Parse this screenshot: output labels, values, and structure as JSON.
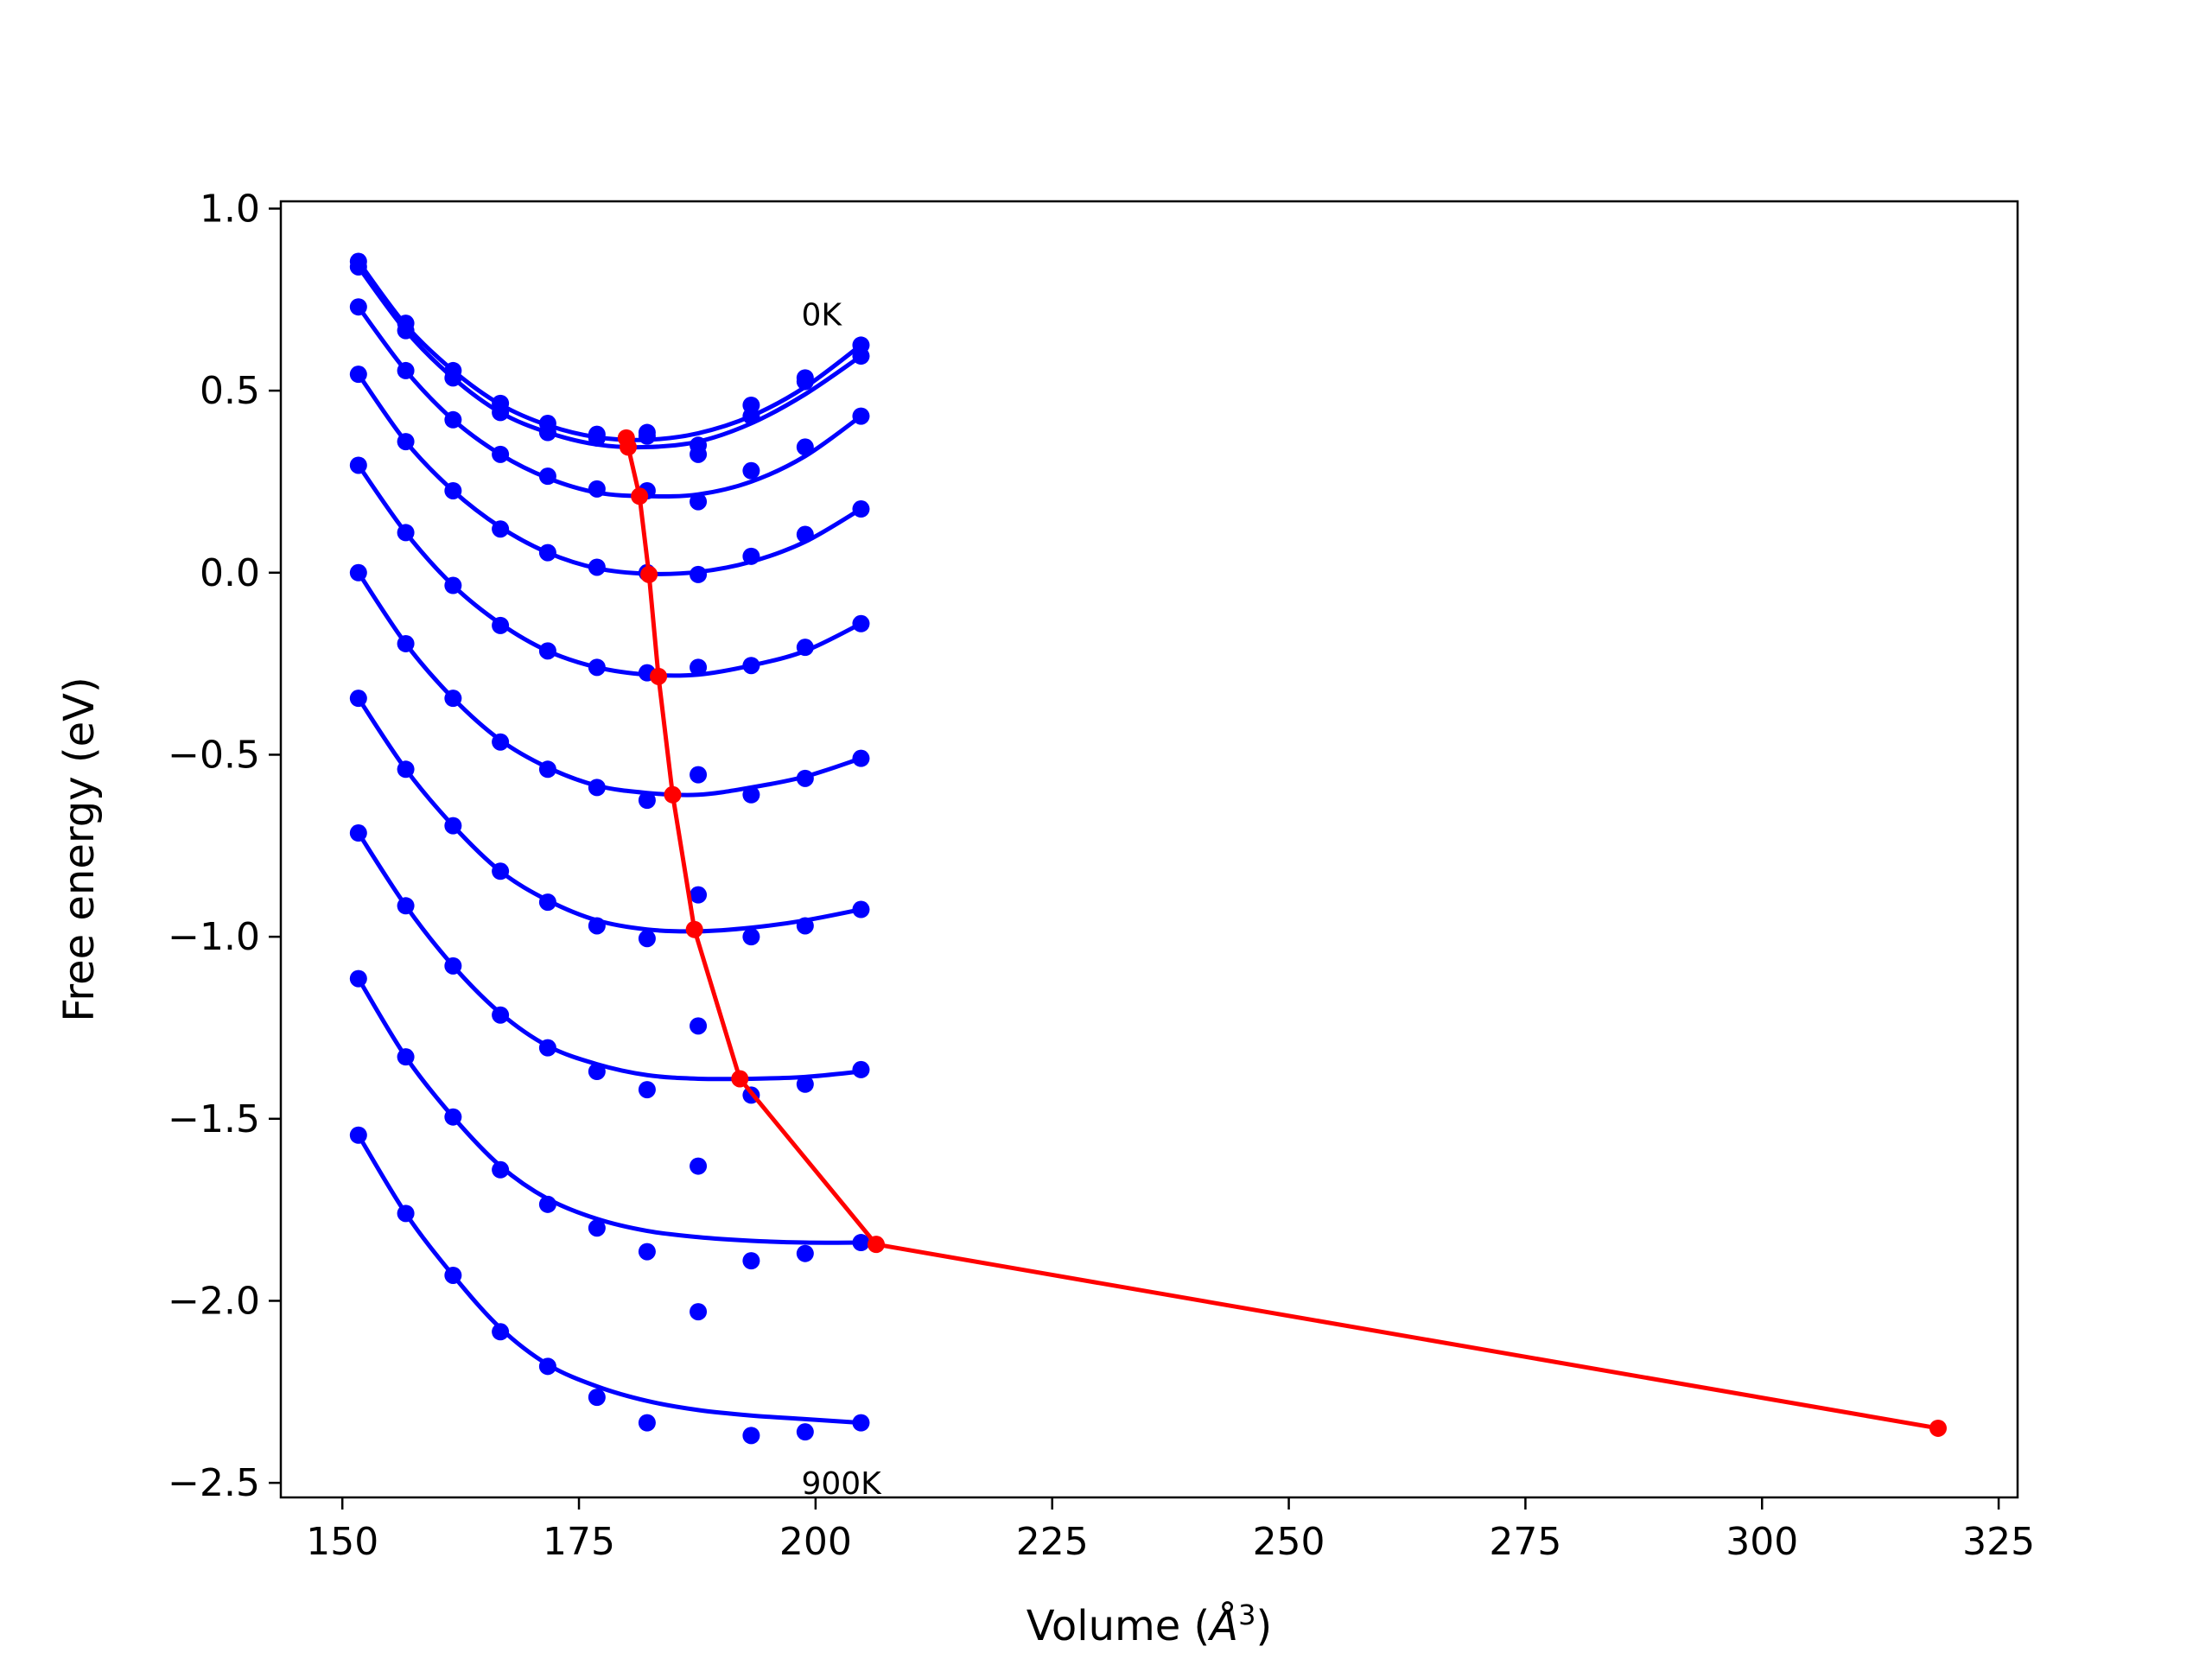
{
  "chart_data": {
    "type": "line",
    "xlabel_prefix": "Volume (",
    "xlabel_symbol": "Å",
    "xlabel_sup": "3",
    "xlabel_suffix": ")",
    "ylabel": "Free energy (eV)",
    "xlim": [
      143.5,
      327
    ],
    "ylim": [
      -2.54,
      1.02
    ],
    "xticks": [
      150,
      175,
      200,
      225,
      250,
      275,
      300,
      325
    ],
    "yticks": [
      1.0,
      0.5,
      0.0,
      -0.5,
      -1.0,
      -1.5,
      -2.0,
      -2.5
    ],
    "annotations": [
      {
        "text": "0K",
        "x": 198.5,
        "y": 0.68
      },
      {
        "text": "900K",
        "x": 198.5,
        "y": -2.53
      }
    ],
    "colors": {
      "series": "#0000ff",
      "minima": "#ff0000"
    },
    "x": [
      151.7,
      156.7,
      161.7,
      166.7,
      171.7,
      176.9,
      182.2,
      187.6,
      193.2,
      198.9,
      204.8
    ],
    "series": [
      {
        "points": [
          0.855,
          0.685,
          0.555,
          0.465,
          0.41,
          0.38,
          0.385,
          0.35,
          0.46,
          0.535,
          0.625
        ],
        "fit": [
          0.855,
          0.68,
          0.555,
          0.462,
          0.405,
          0.372,
          0.365,
          0.383,
          0.43,
          0.51,
          0.625
        ]
      },
      {
        "points": [
          0.84,
          0.665,
          0.535,
          0.44,
          0.385,
          0.37,
          0.375,
          0.325,
          0.43,
          0.525,
          0.595
        ],
        "fit": [
          0.84,
          0.665,
          0.535,
          0.44,
          0.385,
          0.352,
          0.345,
          0.36,
          0.41,
          0.49,
          0.595
        ]
      },
      {
        "points": [
          0.73,
          0.555,
          0.42,
          0.325,
          0.265,
          0.23,
          0.225,
          0.195,
          0.28,
          0.345,
          0.43
        ],
        "fit": [
          0.73,
          0.555,
          0.42,
          0.325,
          0.26,
          0.22,
          0.21,
          0.215,
          0.25,
          0.32,
          0.43
        ]
      },
      {
        "points": [
          0.545,
          0.36,
          0.225,
          0.12,
          0.055,
          0.015,
          0.0,
          -0.005,
          0.045,
          0.105,
          0.175
        ],
        "fit": [
          0.545,
          0.36,
          0.225,
          0.125,
          0.055,
          0.012,
          -0.003,
          0.002,
          0.03,
          0.085,
          0.175
        ]
      },
      {
        "points": [
          0.295,
          0.11,
          -0.035,
          -0.145,
          -0.215,
          -0.26,
          -0.275,
          -0.26,
          -0.255,
          -0.205,
          -0.14
        ],
        "fit": [
          0.295,
          0.11,
          -0.035,
          -0.14,
          -0.215,
          -0.26,
          -0.28,
          -0.28,
          -0.255,
          -0.215,
          -0.14
        ]
      },
      {
        "points": [
          0.0,
          -0.195,
          -0.345,
          -0.465,
          -0.54,
          -0.59,
          -0.625,
          -0.555,
          -0.61,
          -0.565,
          -0.51
        ],
        "fit": [
          0.0,
          -0.195,
          -0.345,
          -0.46,
          -0.535,
          -0.585,
          -0.605,
          -0.61,
          -0.59,
          -0.56,
          -0.51
        ]
      },
      {
        "points": [
          -0.345,
          -0.54,
          -0.695,
          -0.82,
          -0.905,
          -0.97,
          -1.005,
          -0.885,
          -1.0,
          -0.97,
          -0.925
        ],
        "fit": [
          -0.345,
          -0.54,
          -0.695,
          -0.82,
          -0.9,
          -0.955,
          -0.98,
          -0.985,
          -0.975,
          -0.955,
          -0.925
        ]
      },
      {
        "points": [
          -0.715,
          -0.915,
          -1.08,
          -1.215,
          -1.305,
          -1.37,
          -1.42,
          -1.245,
          -1.435,
          -1.405,
          -1.365
        ],
        "fit": [
          -0.715,
          -0.915,
          -1.08,
          -1.21,
          -1.3,
          -1.35,
          -1.38,
          -1.39,
          -1.39,
          -1.385,
          -1.37
        ]
      },
      {
        "points": [
          -1.115,
          -1.33,
          -1.495,
          -1.64,
          -1.735,
          -1.8,
          -1.865,
          -1.63,
          -1.89,
          -1.87,
          -1.84
        ],
        "fit": [
          -1.115,
          -1.33,
          -1.495,
          -1.63,
          -1.72,
          -1.775,
          -1.808,
          -1.825,
          -1.835,
          -1.84,
          -1.84
        ]
      },
      {
        "points": [
          -1.545,
          -1.76,
          -1.93,
          -2.085,
          -2.18,
          -2.265,
          -2.335,
          -2.03,
          -2.37,
          -2.36,
          -2.335
        ],
        "fit": [
          -1.545,
          -1.76,
          -1.93,
          -2.075,
          -2.175,
          -2.235,
          -2.275,
          -2.3,
          -2.315,
          -2.325,
          -2.335
        ]
      }
    ],
    "minima": {
      "x": [
        180.0,
        180.2,
        181.4,
        182.4,
        183.4,
        184.9,
        187.2,
        192.0,
        206.4,
        318.6
      ],
      "y": [
        0.37,
        0.345,
        0.21,
        -0.005,
        -0.285,
        -0.61,
        -0.98,
        -1.39,
        -1.845,
        -2.35
      ]
    }
  }
}
